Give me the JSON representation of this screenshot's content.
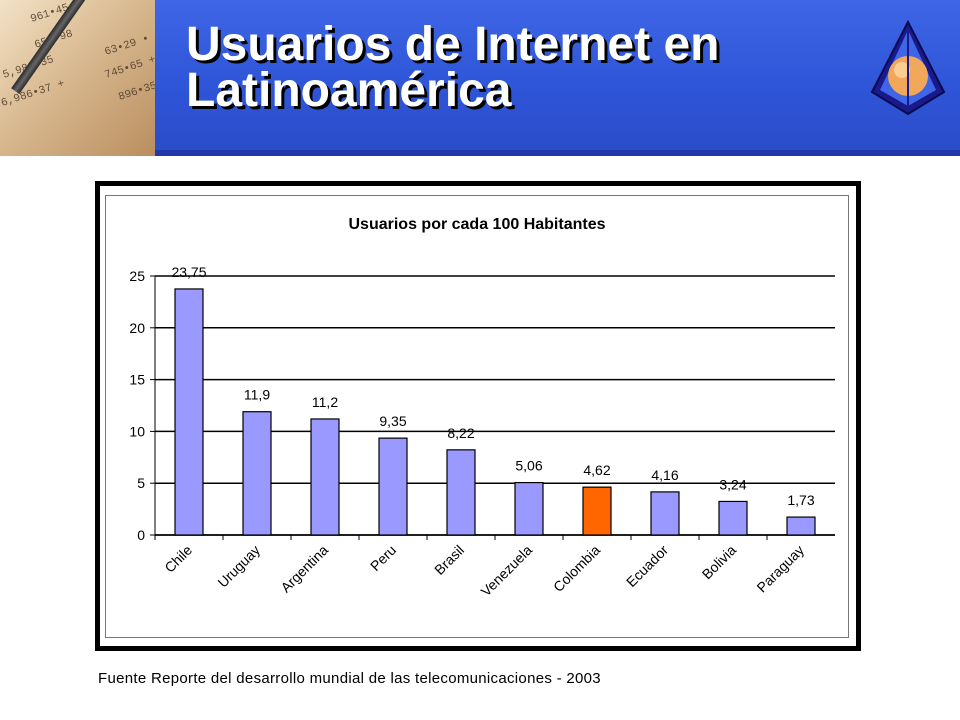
{
  "slide": {
    "title": "Usuarios de Internet en\nLatinoamérica",
    "source": "Fuente Reporte del desarrollo mundial de las telecomunicaciones - 2003"
  },
  "decor": {
    "photo_numbers": [
      "961•45",
      "653•98",
      "5,986•35",
      "6,986•37 +",
      "63•29 •",
      "745•65 +",
      "896•35"
    ],
    "colors": {
      "header_blue": "#2f55d8",
      "bar_blue": "#9999ff",
      "bar_highlight": "#ff6600"
    }
  },
  "chart_data": {
    "type": "bar",
    "title": "Usuarios por cada 100 Habitantes",
    "categories": [
      "Chile",
      "Uruguay",
      "Argentina",
      "Peru",
      "Brasil",
      "Venezuela",
      "Colombia",
      "Ecuador",
      "Bolivia",
      "Paraguay"
    ],
    "values": [
      23.75,
      11.9,
      11.2,
      9.35,
      8.22,
      5.06,
      4.62,
      4.16,
      3.24,
      1.73
    ],
    "value_labels": [
      "23,75",
      "11,9",
      "11,2",
      "9,35",
      "8,22",
      "5,06",
      "4,62",
      "4,16",
      "3,24",
      "1,73"
    ],
    "highlight_category": "Colombia",
    "ylim": [
      0,
      25
    ],
    "yticks": [
      0,
      5,
      10,
      15,
      20,
      25
    ],
    "grid": true,
    "legend": "none"
  }
}
